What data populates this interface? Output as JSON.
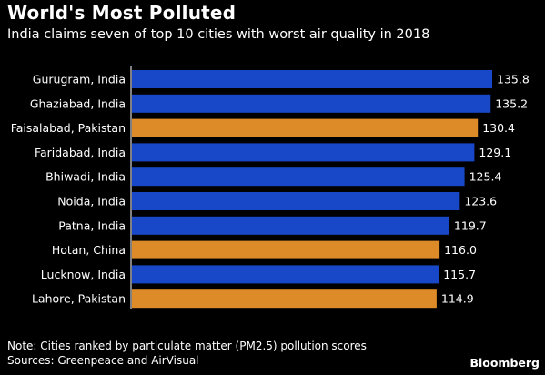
{
  "header": {
    "title": "World's Most Polluted",
    "subtitle": "India claims seven of top 10 cities with worst air quality in 2018"
  },
  "footer": {
    "note": "Note: Cities ranked by particulate matter (PM2.5) pollution scores",
    "sources": "Sources: Greenpeace and AirVisual",
    "brand": "Bloomberg"
  },
  "colors": {
    "india": "#1848c8",
    "other": "#dd8a28",
    "background": "#000000",
    "text": "#ffffff"
  },
  "chart_data": {
    "type": "bar",
    "orientation": "horizontal",
    "title": "World's Most Polluted",
    "subtitle": "India claims seven of top 10 cities with worst air quality in 2018",
    "categories": [
      "Gurugram, India",
      "Ghaziabad, India",
      "Faisalabad, Pakistan",
      "Faridabad, India",
      "Bhiwadi, India",
      "Noida, India",
      "Patna, India",
      "Hotan, China",
      "Lucknow, India",
      "Lahore, Pakistan"
    ],
    "values": [
      135.8,
      135.2,
      130.4,
      129.1,
      125.4,
      123.6,
      119.7,
      116.0,
      115.7,
      114.9
    ],
    "value_labels": [
      "135.8",
      "135.2",
      "130.4",
      "129.1",
      "125.4",
      "123.6",
      "119.7",
      "116.0",
      "115.7",
      "114.9"
    ],
    "bar_colors": [
      "india",
      "india",
      "other",
      "india",
      "india",
      "india",
      "india",
      "other",
      "india",
      "other"
    ],
    "xlim": [
      0,
      135.8
    ],
    "grid": false,
    "legend": "none"
  }
}
